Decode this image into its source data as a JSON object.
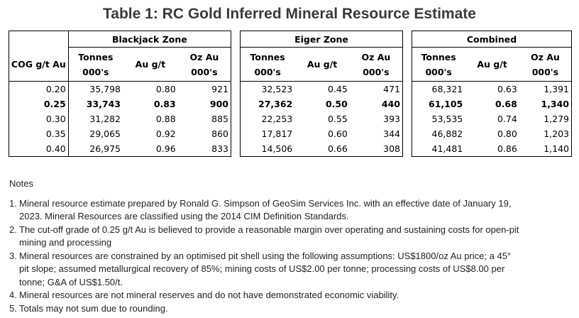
{
  "title": "Table 1: RC Gold Inferred Mineral Resource Estimate",
  "cog_header": "COG g/t Au",
  "column_headers": {
    "tonnes": [
      "Tonnes",
      "000's"
    ],
    "grade": "Au g/t",
    "ounces": [
      "Oz Au",
      "000's"
    ]
  },
  "cog_values": [
    "0.20",
    "0.25",
    "0.30",
    "0.35",
    "0.40"
  ],
  "highlighted_row_index": 1,
  "zones": [
    {
      "name": "Blackjack Zone",
      "rows": [
        [
          "35,798",
          "0.80",
          "921"
        ],
        [
          "33,743",
          "0.83",
          "900"
        ],
        [
          "31,282",
          "0.88",
          "885"
        ],
        [
          "29,065",
          "0.92",
          "860"
        ],
        [
          "26,975",
          "0.96",
          "833"
        ]
      ]
    },
    {
      "name": "Eiger Zone",
      "rows": [
        [
          "32,523",
          "0.45",
          "471"
        ],
        [
          "27,362",
          "0.50",
          "440"
        ],
        [
          "22,253",
          "0.55",
          "393"
        ],
        [
          "17,817",
          "0.60",
          "344"
        ],
        [
          "14,506",
          "0.66",
          "308"
        ]
      ]
    },
    {
      "name": "Combined",
      "rows": [
        [
          "68,321",
          "0.63",
          "1,391"
        ],
        [
          "61,105",
          "0.68",
          "1,340"
        ],
        [
          "53,535",
          "0.74",
          "1,279"
        ],
        [
          "46,882",
          "0.80",
          "1,203"
        ],
        [
          "41,481",
          "0.86",
          "1,140"
        ]
      ]
    }
  ],
  "notes": {
    "heading": "Notes",
    "items": [
      {
        "num": "1.",
        "lines": [
          "Mineral resource estimate prepared by Ronald G. Simpson of GeoSim Services Inc. with an effective date of January 19,",
          "2023. Mineral Resources are classified using the 2014 CIM Definition Standards."
        ]
      },
      {
        "num": "2.",
        "lines": [
          "The cut-off grade of 0.25 g/t Au is believed to provide a reasonable margin over operating and sustaining costs for open-pit",
          "mining and processing"
        ]
      },
      {
        "num": "3.",
        "lines": [
          "Mineral resources are constrained by an optimised pit shell using the following assumptions: US$1800/oz Au price; a 45°",
          "pit slope; assumed metallurgical recovery of 85%; mining costs of US$2.00 per tonne; processing costs of US$8.00 per",
          "tonne; G&A of US$1.50/t."
        ]
      },
      {
        "num": "4.",
        "lines": [
          "Mineral resources are not mineral reserves and do not have demonstrated economic viability."
        ]
      },
      {
        "num": "5.",
        "lines": [
          "Totals may not sum due to rounding."
        ]
      }
    ]
  }
}
